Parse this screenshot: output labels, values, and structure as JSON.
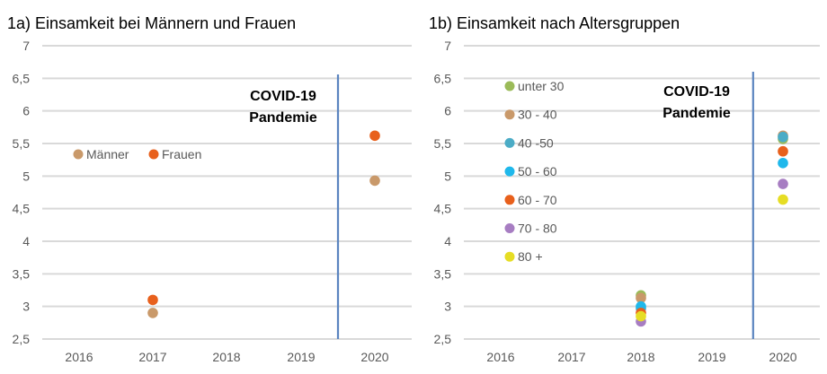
{
  "chart_data": [
    {
      "type": "scatter",
      "title": "1a) Einsamkeit bei Männern und Frauen",
      "xlabel": "",
      "ylabel": "",
      "x_categories": [
        "2016",
        "2017",
        "2018",
        "2019",
        "2020"
      ],
      "ylim": [
        2.5,
        7
      ],
      "yticks": [
        2.5,
        3,
        3.5,
        4,
        4.5,
        5,
        5.5,
        6,
        6.5,
        7
      ],
      "ytick_labels": [
        "2,5",
        "3",
        "3,5",
        "4",
        "4,5",
        "5",
        "5,5",
        "6",
        "6,5",
        "7"
      ],
      "grid": true,
      "legend_placement": "middle-left",
      "series": [
        {
          "name": "Männer",
          "color": "#C9996A",
          "points": [
            {
              "x": "2017",
              "y": 2.9
            },
            {
              "x": "2020",
              "y": 4.93
            }
          ]
        },
        {
          "name": "Frauen",
          "color": "#E8601C",
          "points": [
            {
              "x": "2017",
              "y": 3.1
            },
            {
              "x": "2020",
              "y": 5.62
            }
          ]
        }
      ],
      "annotation": {
        "lines": [
          "COVID-19",
          "Pandemie"
        ],
        "marker_x": 2019.5,
        "marker_color": "#5B85C0"
      }
    },
    {
      "type": "scatter",
      "title": "1b) Einsamkeit nach Altersgruppen",
      "xlabel": "",
      "ylabel": "",
      "x_categories": [
        "2016",
        "2017",
        "2018",
        "2019",
        "2020"
      ],
      "ylim": [
        2.5,
        7
      ],
      "yticks": [
        2.5,
        3,
        3.5,
        4,
        4.5,
        5,
        5.5,
        6,
        6.5,
        7
      ],
      "ytick_labels": [
        "2,5",
        "3",
        "3,5",
        "4",
        "4,5",
        "5",
        "5,5",
        "6",
        "6,5",
        "7"
      ],
      "grid": true,
      "legend_placement": "left",
      "series": [
        {
          "name": "unter 30",
          "color": "#9BBB59",
          "points": [
            {
              "x": "2018",
              "y": 3.17
            },
            {
              "x": "2020",
              "y": 5.57
            }
          ]
        },
        {
          "name": "30 - 40",
          "color": "#C9996A",
          "points": [
            {
              "x": "2018",
              "y": 3.13
            },
            {
              "x": "2020",
              "y": 5.62
            }
          ]
        },
        {
          "name": "40 -50",
          "color": "#4BACC6",
          "points": [
            {
              "x": "2018",
              "y": 2.97
            },
            {
              "x": "2020",
              "y": 5.6
            }
          ]
        },
        {
          "name": "50 - 60",
          "color": "#1FB8EB",
          "points": [
            {
              "x": "2018",
              "y": 3.0
            },
            {
              "x": "2020",
              "y": 5.2
            }
          ]
        },
        {
          "name": "60 - 70",
          "color": "#E8601C",
          "points": [
            {
              "x": "2018",
              "y": 2.9
            },
            {
              "x": "2020",
              "y": 5.38
            }
          ]
        },
        {
          "name": "70 - 80",
          "color": "#A77DC2",
          "points": [
            {
              "x": "2018",
              "y": 2.77
            },
            {
              "x": "2020",
              "y": 4.88
            }
          ]
        },
        {
          "name": "80 +",
          "color": "#E6DD24",
          "points": [
            {
              "x": "2018",
              "y": 2.85
            },
            {
              "x": "2020",
              "y": 4.64
            }
          ]
        }
      ],
      "annotation": {
        "lines": [
          "COVID-19",
          "Pandemie"
        ],
        "marker_x": 2019.58,
        "marker_color": "#5B85C0"
      }
    }
  ]
}
